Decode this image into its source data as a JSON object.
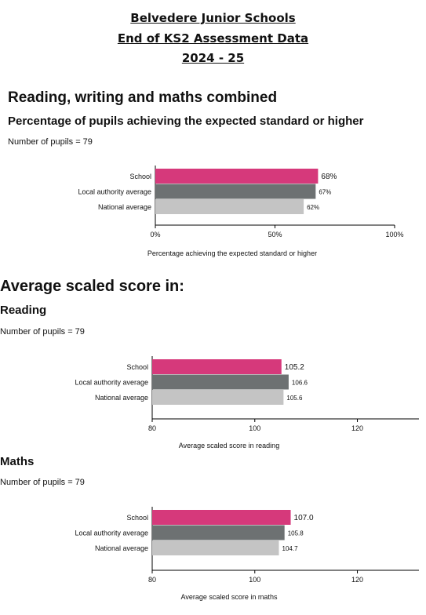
{
  "header": {
    "line1": "Belvedere Junior Schools",
    "line2": "End of KS2 Assessment Data",
    "line3": "2024 - 25"
  },
  "rwm": {
    "title": "Reading, writing and maths combined",
    "subtitle": "Percentage of pupils achieving the expected standard or higher",
    "pupils": "Number of pupils = 79"
  },
  "scaled": {
    "title": "Average scaled score in:",
    "reading_title": "Reading",
    "reading_pupils": "Number of pupils = 79",
    "maths_title": "Maths",
    "maths_pupils": "Number of pupils = 79"
  },
  "colors": {
    "school": "#d6397b",
    "la": "#6d7172",
    "national": "#c4c4c4"
  },
  "chart_data": [
    {
      "type": "bar",
      "orientation": "horizontal",
      "categories": [
        "School",
        "Local authority average",
        "National average"
      ],
      "values": [
        68,
        67,
        62
      ],
      "value_labels": [
        "68%",
        "67%",
        "62%"
      ],
      "xlabel": "Percentage achieving the expected standard or higher",
      "xlim": [
        0,
        100
      ],
      "ticks": [
        0,
        50,
        100
      ],
      "tick_labels": [
        "0%",
        "50%",
        "100%"
      ]
    },
    {
      "type": "bar",
      "orientation": "horizontal",
      "categories": [
        "School",
        "Local authority average",
        "National average"
      ],
      "values": [
        105.2,
        106.6,
        105.6
      ],
      "value_labels": [
        "105.2",
        "106.6",
        "105.6"
      ],
      "xlabel": "Average scaled score in reading",
      "xlim": [
        80,
        132
      ],
      "ticks": [
        80,
        100,
        120
      ],
      "tick_labels": [
        "80",
        "100",
        "120"
      ]
    },
    {
      "type": "bar",
      "orientation": "horizontal",
      "categories": [
        "School",
        "Local authority average",
        "National average"
      ],
      "values": [
        107.0,
        105.8,
        104.7
      ],
      "value_labels": [
        "107.0",
        "105.8",
        "104.7"
      ],
      "xlabel": "Average scaled score in maths",
      "xlim": [
        80,
        132
      ],
      "ticks": [
        80,
        100,
        120
      ],
      "tick_labels": [
        "80",
        "100",
        "120"
      ]
    }
  ]
}
